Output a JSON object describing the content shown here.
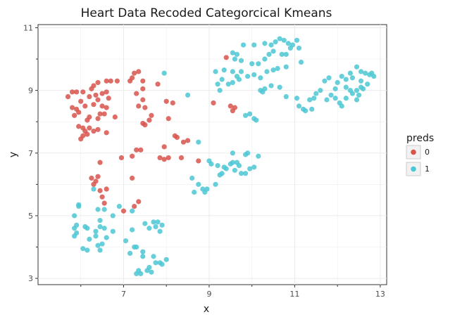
{
  "chart_data": {
    "type": "scatter",
    "title": "Heart Data Recoded Categorcical Kmeans",
    "xlabel": "x",
    "ylabel": "y",
    "xlim": [
      5.0,
      13.15
    ],
    "ylim": [
      2.8,
      11.1
    ],
    "x_ticks": [
      "7",
      "9",
      "11",
      "13"
    ],
    "y_ticks": [
      "3",
      "5",
      "7",
      "9",
      "11"
    ],
    "grid": true,
    "legend": {
      "title": "preds",
      "position": "right",
      "entries": [
        "0",
        "1"
      ]
    },
    "colors": {
      "0": "#d7544b",
      "1": "#4cc7d4"
    },
    "series": [
      {
        "name": "0",
        "points": [
          [
            5.7,
            8.8
          ],
          [
            5.8,
            8.95
          ],
          [
            5.9,
            8.95
          ],
          [
            6.05,
            8.95
          ],
          [
            6.25,
            9.05
          ],
          [
            6.3,
            9.15
          ],
          [
            6.4,
            9.25
          ],
          [
            6.6,
            9.3
          ],
          [
            6.7,
            9.3
          ],
          [
            6.85,
            9.3
          ],
          [
            7.15,
            9.3
          ],
          [
            7.25,
            9.55
          ],
          [
            7.35,
            9.6
          ],
          [
            7.2,
            9.4
          ],
          [
            7.45,
            9.3
          ],
          [
            7.45,
            9.05
          ],
          [
            7.3,
            8.9
          ],
          [
            5.8,
            8.45
          ],
          [
            5.9,
            8.4
          ],
          [
            5.95,
            8.3
          ],
          [
            6.0,
            8.65
          ],
          [
            6.1,
            8.5
          ],
          [
            6.2,
            8.8
          ],
          [
            6.3,
            8.55
          ],
          [
            6.4,
            8.7
          ],
          [
            6.5,
            8.9
          ],
          [
            6.6,
            8.95
          ],
          [
            6.65,
            8.75
          ],
          [
            6.5,
            8.5
          ],
          [
            6.6,
            8.45
          ],
          [
            6.45,
            8.25
          ],
          [
            6.2,
            8.15
          ],
          [
            6.15,
            8.05
          ],
          [
            5.85,
            8.2
          ],
          [
            6.4,
            8.1
          ],
          [
            5.95,
            7.85
          ],
          [
            6.05,
            7.8
          ],
          [
            6.1,
            7.7
          ],
          [
            6.2,
            7.8
          ],
          [
            6.3,
            7.7
          ],
          [
            6.4,
            7.75
          ],
          [
            6.6,
            7.65
          ],
          [
            6.05,
            7.55
          ],
          [
            6.0,
            7.45
          ],
          [
            6.15,
            7.6
          ],
          [
            6.55,
            8.25
          ],
          [
            6.8,
            8.15
          ],
          [
            6.35,
            8.85
          ],
          [
            7.35,
            8.5
          ],
          [
            7.5,
            8.45
          ],
          [
            7.45,
            8.7
          ],
          [
            7.65,
            8.2
          ],
          [
            7.5,
            7.9
          ],
          [
            7.45,
            7.95
          ],
          [
            7.6,
            8.05
          ],
          [
            7.8,
            9.2
          ],
          [
            8.0,
            8.65
          ],
          [
            8.15,
            8.6
          ],
          [
            8.05,
            8.1
          ],
          [
            8.2,
            7.55
          ],
          [
            8.25,
            7.5
          ],
          [
            8.4,
            7.35
          ],
          [
            8.35,
            6.85
          ],
          [
            8.5,
            7.4
          ],
          [
            7.95,
            7.2
          ],
          [
            7.3,
            7.1
          ],
          [
            7.2,
            6.9
          ],
          [
            7.4,
            7.1
          ],
          [
            6.95,
            6.85
          ],
          [
            7.85,
            6.85
          ],
          [
            7.95,
            6.8
          ],
          [
            8.05,
            6.85
          ],
          [
            8.75,
            6.75
          ],
          [
            9.1,
            8.6
          ],
          [
            9.4,
            10.05
          ],
          [
            9.5,
            8.5
          ],
          [
            9.55,
            8.35
          ],
          [
            9.6,
            8.45
          ],
          [
            6.25,
            6.2
          ],
          [
            6.35,
            6.1
          ],
          [
            6.4,
            6.25
          ],
          [
            6.3,
            6.0
          ],
          [
            6.45,
            6.7
          ],
          [
            6.45,
            5.8
          ],
          [
            6.6,
            5.85
          ],
          [
            6.5,
            5.6
          ],
          [
            6.55,
            5.4
          ],
          [
            7.2,
            6.2
          ],
          [
            7.35,
            5.45
          ],
          [
            7.25,
            5.3
          ],
          [
            7.0,
            5.15
          ]
        ]
      },
      {
        "name": "1",
        "points": [
          [
            9.55,
            10.2
          ],
          [
            9.65,
            10.15
          ],
          [
            9.6,
            10.0
          ],
          [
            9.8,
            10.45
          ],
          [
            10.05,
            10.45
          ],
          [
            10.3,
            10.5
          ],
          [
            10.45,
            10.45
          ],
          [
            10.55,
            10.55
          ],
          [
            10.65,
            10.65
          ],
          [
            10.75,
            10.6
          ],
          [
            10.85,
            10.5
          ],
          [
            10.95,
            10.45
          ],
          [
            10.9,
            10.35
          ],
          [
            11.05,
            10.6
          ],
          [
            11.1,
            10.35
          ],
          [
            10.5,
            10.25
          ],
          [
            10.4,
            10.15
          ],
          [
            10.7,
            10.15
          ],
          [
            10.8,
            10.15
          ],
          [
            10.3,
            10.0
          ],
          [
            10.0,
            9.85
          ],
          [
            10.15,
            9.85
          ],
          [
            9.75,
            9.95
          ],
          [
            9.15,
            9.6
          ],
          [
            9.35,
            9.65
          ],
          [
            9.55,
            9.6
          ],
          [
            9.65,
            9.45
          ],
          [
            9.75,
            9.6
          ],
          [
            9.7,
            9.35
          ],
          [
            9.55,
            9.25
          ],
          [
            9.45,
            9.2
          ],
          [
            9.2,
            9.2
          ],
          [
            9.3,
            9.35
          ],
          [
            9.25,
            9.0
          ],
          [
            9.9,
            9.45
          ],
          [
            10.05,
            9.5
          ],
          [
            10.2,
            9.4
          ],
          [
            10.35,
            9.6
          ],
          [
            10.5,
            9.65
          ],
          [
            10.6,
            9.7
          ],
          [
            10.8,
            9.75
          ],
          [
            11.15,
            9.9
          ],
          [
            10.2,
            9.0
          ],
          [
            10.25,
            8.95
          ],
          [
            10.3,
            9.05
          ],
          [
            10.45,
            9.15
          ],
          [
            10.65,
            9.1
          ],
          [
            10.8,
            8.8
          ],
          [
            11.05,
            8.75
          ],
          [
            9.95,
            8.25
          ],
          [
            9.85,
            8.2
          ],
          [
            10.05,
            8.1
          ],
          [
            10.1,
            8.05
          ],
          [
            11.1,
            8.5
          ],
          [
            11.2,
            8.4
          ],
          [
            11.25,
            8.35
          ],
          [
            11.4,
            8.4
          ],
          [
            11.35,
            8.7
          ],
          [
            11.45,
            8.75
          ],
          [
            11.5,
            8.9
          ],
          [
            11.75,
            8.7
          ],
          [
            11.85,
            8.85
          ],
          [
            11.95,
            8.75
          ],
          [
            12.05,
            8.6
          ],
          [
            12.1,
            8.5
          ],
          [
            12.2,
            8.75
          ],
          [
            12.35,
            8.9
          ],
          [
            12.45,
            9.0
          ],
          [
            12.55,
            9.1
          ],
          [
            12.5,
            8.85
          ],
          [
            12.6,
            9.05
          ],
          [
            12.45,
            8.7
          ],
          [
            12.0,
            9.25
          ],
          [
            12.1,
            9.45
          ],
          [
            12.2,
            9.35
          ],
          [
            12.3,
            9.55
          ],
          [
            12.35,
            9.4
          ],
          [
            12.45,
            9.75
          ],
          [
            12.55,
            9.6
          ],
          [
            12.65,
            9.55
          ],
          [
            12.75,
            9.5
          ],
          [
            12.8,
            9.55
          ],
          [
            12.85,
            9.45
          ],
          [
            12.7,
            9.2
          ],
          [
            12.55,
            9.3
          ],
          [
            11.8,
            9.4
          ],
          [
            11.7,
            9.3
          ],
          [
            11.95,
            9.05
          ],
          [
            12.2,
            9.1
          ],
          [
            12.3,
            9.0
          ],
          [
            11.6,
            9.0
          ],
          [
            9.0,
            6.75
          ],
          [
            9.05,
            6.65
          ],
          [
            9.2,
            6.6
          ],
          [
            9.35,
            6.55
          ],
          [
            9.4,
            6.5
          ],
          [
            9.3,
            6.35
          ],
          [
            9.5,
            6.65
          ],
          [
            9.55,
            6.7
          ],
          [
            9.65,
            6.7
          ],
          [
            9.7,
            6.6
          ],
          [
            9.6,
            6.45
          ],
          [
            9.75,
            6.35
          ],
          [
            9.85,
            6.35
          ],
          [
            9.95,
            6.5
          ],
          [
            10.05,
            6.55
          ],
          [
            9.9,
            7.0
          ],
          [
            10.15,
            6.9
          ],
          [
            9.55,
            7.0
          ],
          [
            9.85,
            6.95
          ],
          [
            9.25,
            6.3
          ],
          [
            8.6,
            6.2
          ],
          [
            8.75,
            6.0
          ],
          [
            8.65,
            5.75
          ],
          [
            8.85,
            5.85
          ],
          [
            8.95,
            5.85
          ],
          [
            8.9,
            5.75
          ],
          [
            9.15,
            6.0
          ],
          [
            7.95,
            9.55
          ],
          [
            8.5,
            8.85
          ],
          [
            8.75,
            7.35
          ],
          [
            5.85,
            5.0
          ],
          [
            5.95,
            5.3
          ],
          [
            5.95,
            5.35
          ],
          [
            5.9,
            4.7
          ],
          [
            6.1,
            4.65
          ],
          [
            6.15,
            4.6
          ],
          [
            5.85,
            4.6
          ],
          [
            5.9,
            4.45
          ],
          [
            5.85,
            4.35
          ],
          [
            6.05,
            3.95
          ],
          [
            6.15,
            3.9
          ],
          [
            6.35,
            4.5
          ],
          [
            6.45,
            4.85
          ],
          [
            6.4,
            5.2
          ],
          [
            6.55,
            5.2
          ],
          [
            6.3,
            5.85
          ],
          [
            6.35,
            4.35
          ],
          [
            6.4,
            4.05
          ],
          [
            6.45,
            3.9
          ],
          [
            6.5,
            4.1
          ],
          [
            6.6,
            4.3
          ],
          [
            6.45,
            4.65
          ],
          [
            6.55,
            4.6
          ],
          [
            6.75,
            4.5
          ],
          [
            6.75,
            5.0
          ],
          [
            6.9,
            5.3
          ],
          [
            6.2,
            4.25
          ],
          [
            7.05,
            4.2
          ],
          [
            7.15,
            3.8
          ],
          [
            7.2,
            4.55
          ],
          [
            7.2,
            5.15
          ],
          [
            7.3,
            4.0
          ],
          [
            7.45,
            3.85
          ],
          [
            7.5,
            4.75
          ],
          [
            7.6,
            4.6
          ],
          [
            7.7,
            4.8
          ],
          [
            7.8,
            4.8
          ],
          [
            7.75,
            4.65
          ],
          [
            7.9,
            4.7
          ],
          [
            7.85,
            4.5
          ],
          [
            7.7,
            3.7
          ],
          [
            7.6,
            3.35
          ],
          [
            7.55,
            3.25
          ],
          [
            7.65,
            3.2
          ],
          [
            7.4,
            3.15
          ],
          [
            7.3,
            3.15
          ],
          [
            7.85,
            3.5
          ],
          [
            7.9,
            3.45
          ],
          [
            8.0,
            3.6
          ],
          [
            7.75,
            3.5
          ],
          [
            7.45,
            3.7
          ],
          [
            7.25,
            4.0
          ],
          [
            7.35,
            3.25
          ]
        ]
      }
    ]
  }
}
